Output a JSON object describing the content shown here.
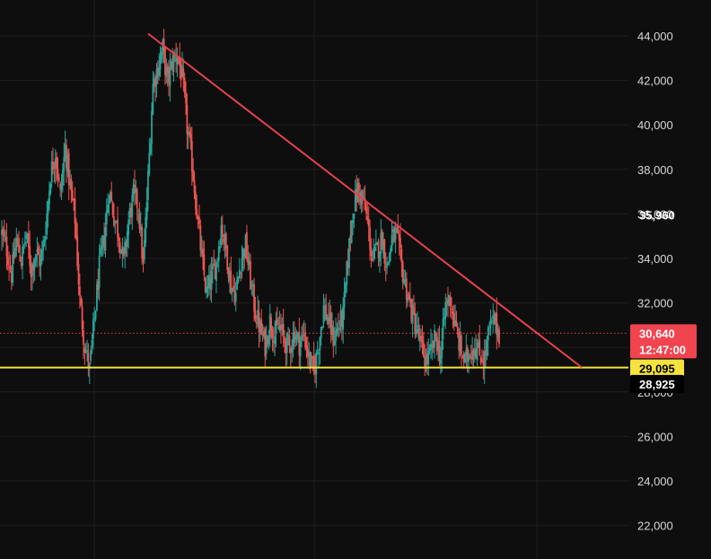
{
  "chart_data": {
    "type": "candlestick",
    "title": "",
    "xlabel": "",
    "ylabel": "",
    "ylim": [
      21000,
      45200
    ],
    "grid": true,
    "y_ticks": [
      22000,
      24000,
      26000,
      28000,
      30000,
      32000,
      34000,
      36000,
      38000,
      40000,
      42000,
      44000
    ],
    "y_tick_labels": [
      "22,000",
      "24,000",
      "26,000",
      "28,000",
      "30,000",
      "32,000",
      "34,000",
      "36,000",
      "38,000",
      "40,000",
      "42,000",
      "44,000"
    ],
    "close_series": [
      35100,
      34400,
      33300,
      34800,
      33900,
      35100,
      33500,
      34300,
      33800,
      35400,
      37800,
      38800,
      36800,
      39000,
      37200,
      35800,
      32100,
      30100,
      29000,
      31300,
      33600,
      34900,
      37100,
      35900,
      35100,
      33800,
      35700,
      36800,
      36400,
      33600,
      37600,
      41800,
      42600,
      43400,
      41900,
      42800,
      43200,
      42100,
      39900,
      38300,
      36100,
      34000,
      32400,
      33100,
      33800,
      35500,
      34400,
      32800,
      32400,
      33900,
      34600,
      33000,
      31600,
      30800,
      30100,
      31200,
      30600,
      30900,
      30300,
      30000,
      30700,
      30200,
      30600,
      29500,
      28900,
      30200,
      31800,
      31200,
      30400,
      30900,
      31400,
      34000,
      36200,
      37100,
      36700,
      35600,
      33900,
      34400,
      34900,
      33600,
      34900,
      35000,
      33600,
      32600,
      31600,
      30900,
      30000,
      29400,
      29700,
      30500,
      29600,
      31900,
      32200,
      30900,
      30000,
      29300,
      29900,
      30100,
      29700,
      29500,
      30800,
      31200,
      30640
    ],
    "annotations": {
      "resistance_trendline": {
        "from": [
          165,
          44100
        ],
        "to": [
          648,
          29100
        ],
        "color": "#e5424d"
      },
      "support_line": {
        "value": 29095,
        "color": "#f5e33d"
      },
      "current_price_line": {
        "value": 30640,
        "color": "#e5424d"
      }
    },
    "price_tags": [
      {
        "label": "35,960",
        "value": 35960,
        "style": "plain"
      },
      {
        "label": "30,640",
        "sublabel": "12:47:00",
        "value": 30640,
        "style": "red"
      },
      {
        "label": "29,095",
        "value": 29095,
        "style": "yellow"
      },
      {
        "label": "28,925",
        "value": 28925,
        "style": "black"
      }
    ],
    "colors": {
      "background": "#0e0e0e",
      "grid": "#1f1f1f",
      "up": "#26a69a",
      "down": "#ef5350",
      "trendline": "#e5424d",
      "support": "#f5e33d",
      "tag_red": "#f0444f",
      "tag_yellow": "#f5e33d"
    }
  }
}
